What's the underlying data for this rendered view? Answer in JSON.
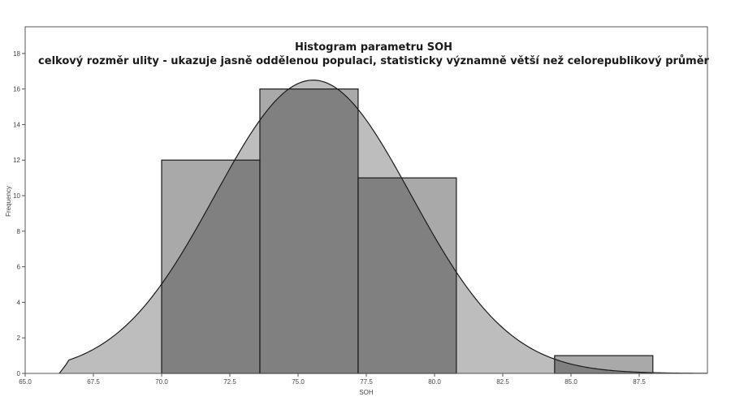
{
  "chart_data": {
    "type": "bar",
    "title": "Histogram parametru SOH",
    "subtitle": "celkový rozměr ulity - ukazuje jasně oddělenou populaci, statisticky významně větší než celorepublikový průměr",
    "xlabel": "SOH",
    "ylabel": "Frequency",
    "xlim": [
      65.0,
      90.0
    ],
    "ylim": [
      0,
      19.5
    ],
    "x_ticks": [
      65.0,
      67.5,
      70.0,
      72.5,
      75.0,
      77.5,
      80.0,
      82.5,
      85.0,
      87.5
    ],
    "x_tick_labels": [
      "65.0",
      "67.5",
      "70.0",
      "72.5",
      "75.0",
      "77.5",
      "80.0",
      "82.5",
      "85.0",
      "87.5"
    ],
    "y_ticks": [
      0,
      2,
      4,
      6,
      8,
      10,
      12,
      14,
      16,
      18
    ],
    "y_tick_labels": [
      "0",
      "2",
      "4",
      "6",
      "8",
      "10",
      "12",
      "14",
      "16",
      "18"
    ],
    "bins": [
      {
        "start": 70.0,
        "end": 73.6,
        "count": 12
      },
      {
        "start": 73.6,
        "end": 77.2,
        "count": 16
      },
      {
        "start": 77.2,
        "end": 80.8,
        "count": 11
      },
      {
        "start": 80.8,
        "end": 84.4,
        "count": 0
      },
      {
        "start": 84.4,
        "end": 88.0,
        "count": 1
      }
    ],
    "density_curve": {
      "mean": 75.55,
      "sd": 3.6,
      "peak": 16.5,
      "x_start": 66.5,
      "x_end": 90.0,
      "start_value": 0.5
    },
    "grid": false,
    "legend": "none",
    "colors": {
      "bar_fill": "#a9a9a9",
      "curve_fill": "#bdbdbd",
      "overlap_fill": "#808080",
      "stroke": "#1a1a1a"
    }
  }
}
